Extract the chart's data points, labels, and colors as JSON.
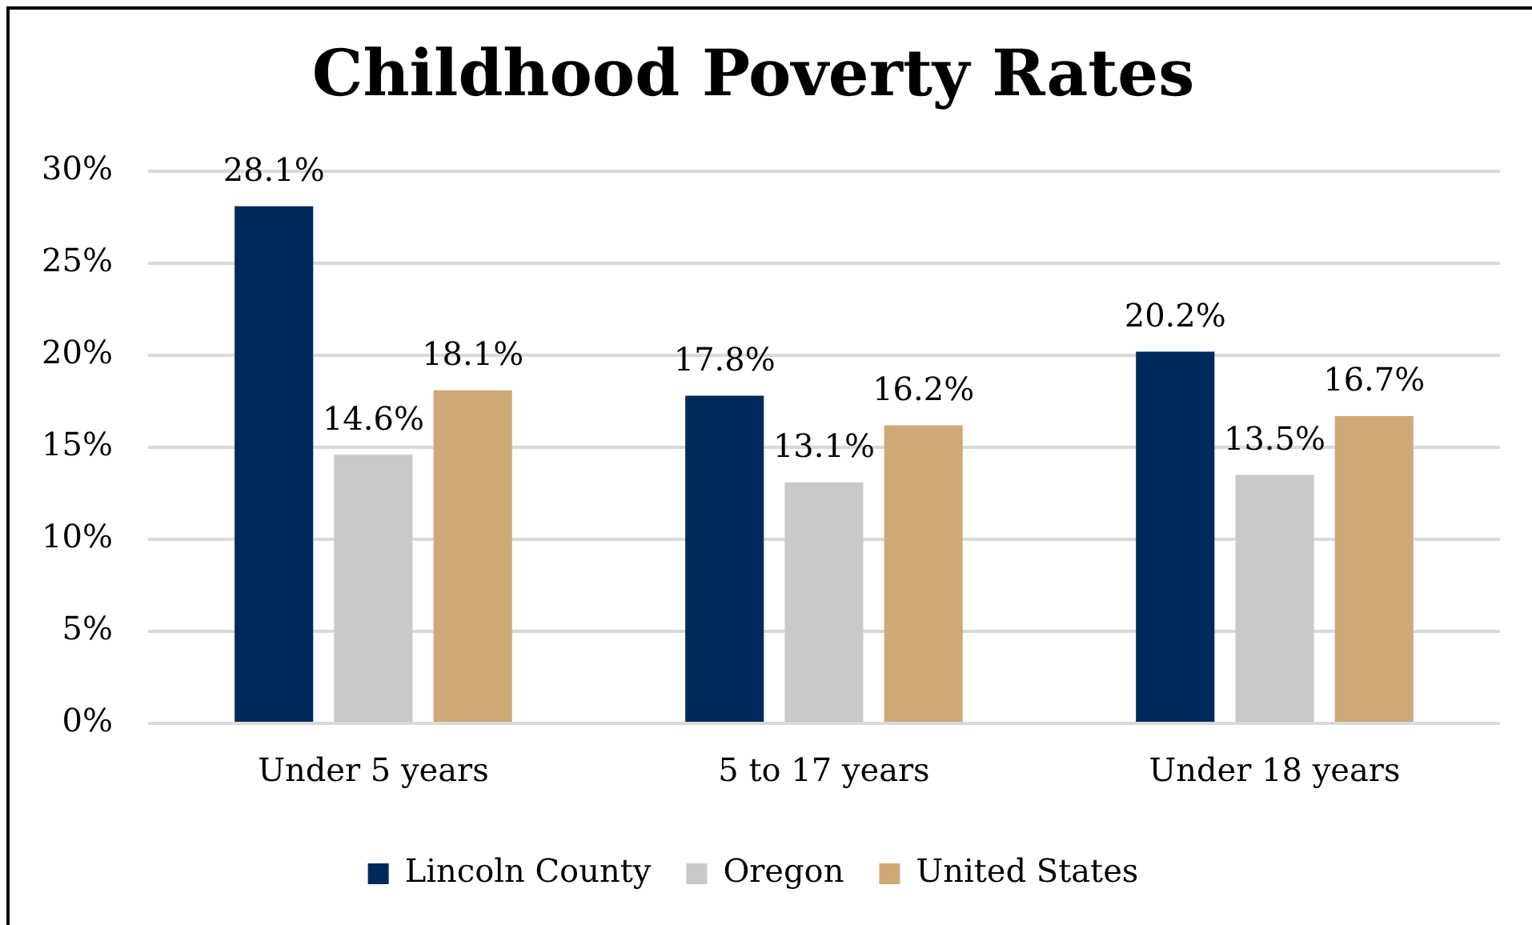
{
  "chart_data": {
    "type": "bar",
    "title": "Childhood Poverty Rates",
    "categories": [
      "Under 5 years",
      "5 to 17 years",
      "Under 18 years"
    ],
    "series": [
      {
        "name": "Lincoln County",
        "color": "#002a5c",
        "values": [
          28.1,
          17.8,
          20.2
        ],
        "value_labels": [
          "28.1%",
          "17.8%",
          "20.2%"
        ]
      },
      {
        "name": "Oregon",
        "color": "#c9c9c9",
        "values": [
          14.6,
          13.1,
          13.5
        ],
        "value_labels": [
          "14.6%",
          "13.1%",
          "13.5%"
        ]
      },
      {
        "name": "United States",
        "color": "#cfa977",
        "values": [
          18.1,
          16.2,
          16.7
        ],
        "value_labels": [
          "18.1%",
          "16.2%",
          "16.7%"
        ]
      }
    ],
    "ylim": [
      0,
      30
    ],
    "yticks": [
      {
        "value": 0,
        "label": "0%"
      },
      {
        "value": 5,
        "label": "5%"
      },
      {
        "value": 10,
        "label": "10%"
      },
      {
        "value": 15,
        "label": "15%"
      },
      {
        "value": 20,
        "label": "20%"
      },
      {
        "value": 25,
        "label": "25%"
      },
      {
        "value": 30,
        "label": "30%"
      }
    ],
    "grid": "y",
    "legend": "bottom"
  }
}
